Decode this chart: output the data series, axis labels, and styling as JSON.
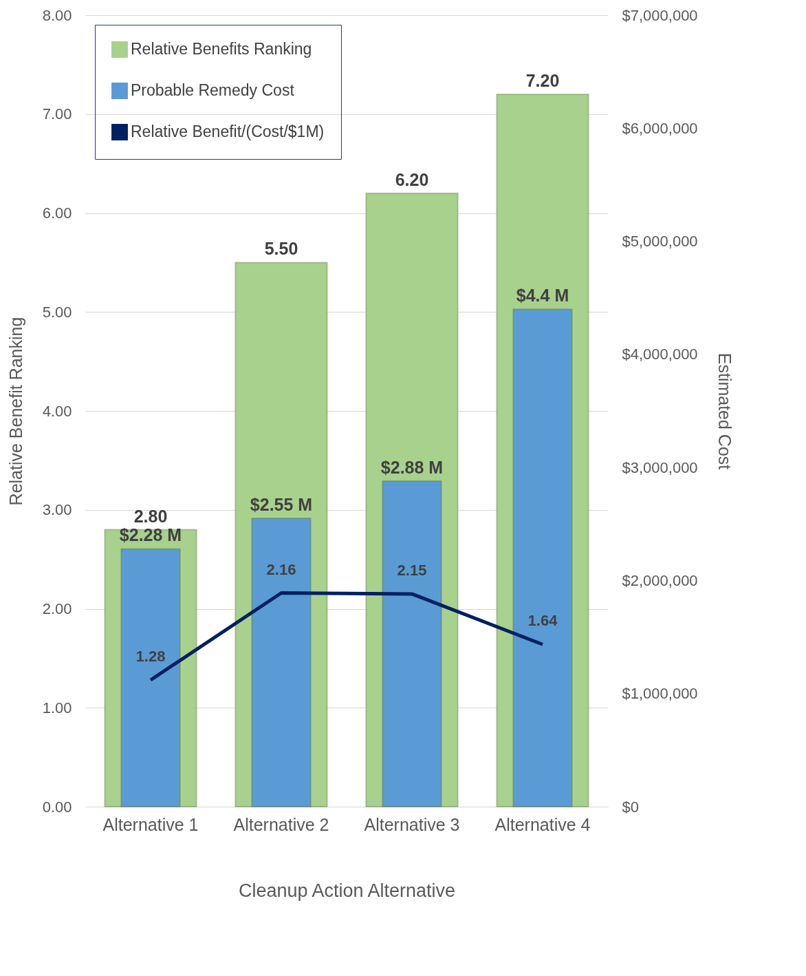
{
  "chart_data": {
    "type": "bar",
    "categories": [
      "Alternative 1",
      "Alternative 2",
      "Alternative 3",
      "Alternative 4"
    ],
    "xlabel": "Cleanup Action Alternative",
    "ylabel": "Relative Benefit Ranking",
    "y2label": "Estimated Cost",
    "ylim": [
      0,
      8
    ],
    "yticks": [
      {
        "value": 0,
        "label": "0.00"
      },
      {
        "value": 1,
        "label": "1.00"
      },
      {
        "value": 2,
        "label": "2.00"
      },
      {
        "value": 3,
        "label": "3.00"
      },
      {
        "value": 4,
        "label": "4.00"
      },
      {
        "value": 5,
        "label": "5.00"
      },
      {
        "value": 6,
        "label": "6.00"
      },
      {
        "value": 7,
        "label": "7.00"
      },
      {
        "value": 8,
        "label": "8.00"
      }
    ],
    "y2lim": [
      0,
      7000000
    ],
    "y2ticks": [
      {
        "value": 0,
        "label": "$0"
      },
      {
        "value": 1000000,
        "label": "$1,000,000"
      },
      {
        "value": 2000000,
        "label": "$2,000,000"
      },
      {
        "value": 3000000,
        "label": "$3,000,000"
      },
      {
        "value": 4000000,
        "label": "$4,000,000"
      },
      {
        "value": 5000000,
        "label": "$5,000,000"
      },
      {
        "value": 6000000,
        "label": "$6,000,000"
      },
      {
        "value": 7000000,
        "label": "$7,000,000"
      }
    ],
    "grid": "y",
    "legend": "top left",
    "series": [
      {
        "name": "Relative Benefits Ranking",
        "color": "#a9d18e",
        "values": [
          2.8,
          5.5,
          6.2,
          7.2
        ],
        "value_labels": [
          "2.80",
          "5.50",
          "6.20",
          "7.20"
        ]
      },
      {
        "name": "Probable Remedy Cost",
        "axis": "y2",
        "color": "#5b9bd5",
        "values": [
          2280000,
          2550000,
          2880000,
          4400000
        ],
        "value_labels": [
          "$2.28 M",
          "$2.55 M",
          "$2.88 M",
          "$4.4 M"
        ]
      },
      {
        "name": "Relative Benefit/(Cost/$1M)",
        "type": "line",
        "color": "#002060",
        "values": [
          1.28,
          2.16,
          2.15,
          1.64
        ],
        "value_labels": [
          "1.28",
          "2.16",
          "2.15",
          "1.64"
        ]
      }
    ]
  }
}
